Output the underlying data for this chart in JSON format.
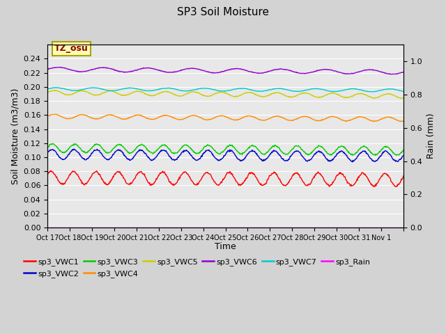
{
  "title": "SP3 Soil Moisture",
  "xlabel": "Time",
  "ylabel_left": "Soil Moisture (m3/m3)",
  "ylabel_right": "Rain (mm)",
  "annotation": "TZ_osu",
  "ylim_left": [
    0.0,
    0.26
  ],
  "ylim_right": [
    0.0,
    1.1
  ],
  "yticks_left": [
    0.0,
    0.02,
    0.04,
    0.06,
    0.08,
    0.1,
    0.12,
    0.14,
    0.16,
    0.18,
    0.2,
    0.22,
    0.24
  ],
  "yticks_right": [
    0.0,
    0.2,
    0.4,
    0.6,
    0.8,
    1.0
  ],
  "xtick_positions": [
    0,
    1,
    2,
    3,
    4,
    5,
    6,
    7,
    8,
    9,
    10,
    11,
    12,
    13,
    14,
    15,
    16
  ],
  "xtick_labels": [
    "Oct 17",
    "Oct 18",
    "Oct 19",
    "Oct 20",
    "Oct 21",
    "Oct 22",
    "Oct 23",
    "Oct 24",
    "Oct 25",
    "Oct 26",
    "Oct 27",
    "Oct 28",
    "Oct 29",
    "Oct 30",
    "Oct 31",
    "Nov 1",
    ""
  ],
  "background_color": "#d3d3d3",
  "plot_bg_color": "#e8e8e8",
  "series": [
    {
      "name": "sp3_VWC1",
      "color": "#ff0000",
      "base": 0.071,
      "amp": 0.009,
      "trend": -0.003,
      "freq": 1.0,
      "phase": 0.5,
      "axis": "left"
    },
    {
      "name": "sp3_VWC2",
      "color": "#0000cc",
      "base": 0.104,
      "amp": 0.007,
      "trend": -0.003,
      "freq": 1.0,
      "phase": 0.3,
      "axis": "left"
    },
    {
      "name": "sp3_VWC3",
      "color": "#00cc00",
      "base": 0.113,
      "amp": 0.006,
      "trend": -0.004,
      "freq": 1.0,
      "phase": 0.2,
      "axis": "left"
    },
    {
      "name": "sp3_VWC4",
      "color": "#ff8c00",
      "base": 0.158,
      "amp": 0.003,
      "trend": -0.004,
      "freq": 0.8,
      "phase": 0.0,
      "axis": "left"
    },
    {
      "name": "sp3_VWC5",
      "color": "#cccc00",
      "base": 0.192,
      "amp": 0.003,
      "trend": -0.005,
      "freq": 0.8,
      "phase": 0.0,
      "axis": "left"
    },
    {
      "name": "sp3_VWC6",
      "color": "#9400d3",
      "base": 0.225,
      "amp": 0.003,
      "trend": -0.004,
      "freq": 0.5,
      "phase": 0.0,
      "axis": "left"
    },
    {
      "name": "sp3_VWC7",
      "color": "#00cccc",
      "base": 0.197,
      "amp": 0.002,
      "trend": -0.002,
      "freq": 0.6,
      "phase": 0.1,
      "axis": "left"
    },
    {
      "name": "sp3_Rain",
      "color": "#ff00ff",
      "base": 0.0,
      "amp": 0.0,
      "trend": 0.0,
      "freq": 0.0,
      "phase": 0.0,
      "axis": "right"
    }
  ],
  "legend": [
    {
      "label": "sp3_VWC1",
      "color": "#ff0000"
    },
    {
      "label": "sp3_VWC2",
      "color": "#0000cc"
    },
    {
      "label": "sp3_VWC3",
      "color": "#00cc00"
    },
    {
      "label": "sp3_VWC4",
      "color": "#ff8c00"
    },
    {
      "label": "sp3_VWC5",
      "color": "#cccc00"
    },
    {
      "label": "sp3_VWC6",
      "color": "#9400d3"
    },
    {
      "label": "sp3_VWC7",
      "color": "#00cccc"
    },
    {
      "label": "sp3_Rain",
      "color": "#ff00ff"
    }
  ]
}
